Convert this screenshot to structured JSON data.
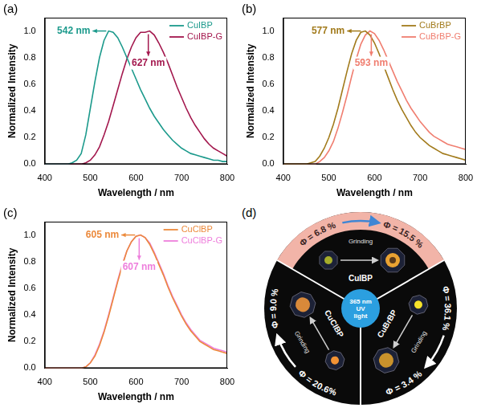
{
  "chart_data": [
    {
      "type": "line",
      "panel": "(a)",
      "x_label": "Wavelength / nm",
      "y_label": "Normalized Intensity",
      "x": [
        400,
        410,
        420,
        430,
        440,
        450,
        460,
        470,
        480,
        490,
        500,
        510,
        520,
        530,
        540,
        550,
        560,
        570,
        580,
        590,
        600,
        610,
        620,
        630,
        640,
        650,
        660,
        670,
        680,
        690,
        700,
        710,
        720,
        730,
        740,
        750,
        760,
        770,
        780,
        790,
        800
      ],
      "series": [
        {
          "name": "CuIBP",
          "color": "#1c9a8c",
          "values": [
            0,
            0,
            0,
            0,
            0,
            0,
            0.01,
            0.03,
            0.08,
            0.22,
            0.42,
            0.62,
            0.8,
            0.93,
            1.0,
            0.99,
            0.95,
            0.88,
            0.8,
            0.72,
            0.64,
            0.56,
            0.49,
            0.42,
            0.36,
            0.31,
            0.26,
            0.22,
            0.18,
            0.15,
            0.12,
            0.1,
            0.08,
            0.07,
            0.06,
            0.05,
            0.04,
            0.03,
            0.03,
            0.02,
            0.02
          ]
        },
        {
          "name": "CuIBP-G",
          "color": "#a3174d",
          "values": [
            0,
            0,
            0,
            0,
            0,
            0,
            0,
            0,
            0,
            0.01,
            0.03,
            0.07,
            0.13,
            0.22,
            0.32,
            0.44,
            0.56,
            0.68,
            0.79,
            0.88,
            0.95,
            0.99,
            0.99,
            1.0,
            0.97,
            0.91,
            0.84,
            0.76,
            0.67,
            0.58,
            0.5,
            0.42,
            0.35,
            0.29,
            0.24,
            0.19,
            0.15,
            0.12,
            0.1,
            0.08,
            0.06
          ]
        }
      ],
      "xlim": [
        400,
        800
      ],
      "xticks": [
        400,
        500,
        600,
        700,
        800
      ],
      "ylim": [
        0,
        1.1
      ],
      "yticks": [
        {
          "value": 0,
          "label": "0.0"
        },
        {
          "value": 0.2,
          "label": "0.2"
        },
        {
          "value": 0.4,
          "label": "0.4"
        },
        {
          "value": 0.6,
          "label": "0.6"
        },
        {
          "value": 0.8,
          "label": "0.8"
        },
        {
          "value": 1.0,
          "label": "1.0"
        }
      ],
      "grid": false,
      "legend": "upper right",
      "annotations": [
        {
          "text": "542 nm",
          "x": 542,
          "y": 1.0,
          "color": "#1c9a8c"
        },
        {
          "text": "627 nm",
          "x": 627,
          "y": 1.0,
          "color": "#a3174d"
        }
      ]
    },
    {
      "type": "line",
      "panel": "(b)",
      "x_label": "Wavelength / nm",
      "y_label": "Normalized Intensity",
      "x": [
        400,
        410,
        420,
        430,
        440,
        450,
        460,
        470,
        480,
        490,
        500,
        510,
        520,
        530,
        540,
        550,
        560,
        570,
        580,
        590,
        600,
        610,
        620,
        630,
        640,
        650,
        660,
        670,
        680,
        690,
        700,
        710,
        720,
        730,
        740,
        750,
        760,
        770,
        780,
        790,
        800
      ],
      "series": [
        {
          "name": "CuBrBP",
          "color": "#a27b1c",
          "values": [
            0,
            0,
            0,
            0,
            0,
            0,
            0.01,
            0.02,
            0.06,
            0.12,
            0.2,
            0.3,
            0.42,
            0.56,
            0.7,
            0.83,
            0.93,
            0.99,
            1.0,
            0.97,
            0.91,
            0.83,
            0.74,
            0.65,
            0.56,
            0.48,
            0.41,
            0.35,
            0.29,
            0.24,
            0.2,
            0.17,
            0.14,
            0.12,
            0.1,
            0.08,
            0.07,
            0.06,
            0.05,
            0.04,
            0.03
          ]
        },
        {
          "name": "CuBrBP-G",
          "color": "#f07e70",
          "values": [
            0,
            0,
            0,
            0,
            0,
            0,
            0,
            0,
            0.02,
            0.05,
            0.1,
            0.17,
            0.27,
            0.39,
            0.52,
            0.66,
            0.79,
            0.9,
            0.97,
            1.0,
            0.98,
            0.93,
            0.86,
            0.78,
            0.7,
            0.62,
            0.55,
            0.48,
            0.42,
            0.37,
            0.32,
            0.28,
            0.24,
            0.21,
            0.19,
            0.17,
            0.15,
            0.14,
            0.13,
            0.12,
            0.11
          ]
        }
      ],
      "xlim": [
        400,
        800
      ],
      "xticks": [
        400,
        500,
        600,
        700,
        800
      ],
      "ylim": [
        0,
        1.1
      ],
      "yticks": [
        {
          "value": 0,
          "label": "0.0"
        },
        {
          "value": 0.2,
          "label": "0.2"
        },
        {
          "value": 0.4,
          "label": "0.4"
        },
        {
          "value": 0.6,
          "label": "0.6"
        },
        {
          "value": 0.8,
          "label": "0.8"
        },
        {
          "value": 1.0,
          "label": "1.0"
        }
      ],
      "grid": false,
      "legend": "upper right",
      "annotations": [
        {
          "text": "577 nm",
          "x": 577,
          "y": 1.0,
          "color": "#a27b1c"
        },
        {
          "text": "593 nm",
          "x": 593,
          "y": 1.0,
          "color": "#f07e70"
        }
      ]
    },
    {
      "type": "line",
      "panel": "(c)",
      "x_label": "Wavelength / nm",
      "y_label": "Normalized Intensity",
      "x": [
        400,
        410,
        420,
        430,
        440,
        450,
        460,
        470,
        480,
        490,
        500,
        510,
        520,
        530,
        540,
        550,
        560,
        570,
        580,
        590,
        600,
        610,
        620,
        630,
        640,
        650,
        660,
        670,
        680,
        690,
        700,
        710,
        720,
        730,
        740,
        750,
        760,
        770,
        780,
        790,
        800
      ],
      "series": [
        {
          "name": "CuClBP",
          "color": "#ec8a3c",
          "values": [
            0,
            0,
            0,
            0,
            0,
            0,
            0,
            0,
            0,
            0.01,
            0.04,
            0.09,
            0.17,
            0.27,
            0.39,
            0.52,
            0.65,
            0.77,
            0.88,
            0.95,
            0.99,
            1.0,
            0.98,
            0.93,
            0.86,
            0.78,
            0.7,
            0.61,
            0.53,
            0.46,
            0.39,
            0.33,
            0.28,
            0.24,
            0.2,
            0.18,
            0.16,
            0.14,
            0.13,
            0.12,
            0.11
          ]
        },
        {
          "name": "CuClBP-G",
          "color": "#ee7fdc",
          "values": [
            0,
            0,
            0,
            0,
            0,
            0,
            0,
            0,
            0,
            0.01,
            0.04,
            0.1,
            0.18,
            0.28,
            0.4,
            0.53,
            0.66,
            0.78,
            0.88,
            0.95,
            0.99,
            1.0,
            0.98,
            0.94,
            0.87,
            0.79,
            0.71,
            0.62,
            0.54,
            0.47,
            0.4,
            0.34,
            0.29,
            0.25,
            0.21,
            0.19,
            0.17,
            0.15,
            0.14,
            0.13,
            0.12
          ]
        }
      ],
      "xlim": [
        400,
        800
      ],
      "xticks": [
        400,
        500,
        600,
        700,
        800
      ],
      "ylim": [
        0,
        1.1
      ],
      "yticks": [
        {
          "value": 0,
          "label": "0.0"
        },
        {
          "value": 0.2,
          "label": "0.2"
        },
        {
          "value": 0.4,
          "label": "0.4"
        },
        {
          "value": 0.6,
          "label": "0.6"
        },
        {
          "value": 0.8,
          "label": "0.8"
        },
        {
          "value": 1.0,
          "label": "1.0"
        }
      ],
      "grid": false,
      "legend": "upper right",
      "annotations": [
        {
          "text": "605 nm",
          "x": 605,
          "y": 1.0,
          "color": "#ec8a3c"
        },
        {
          "text": "607 nm",
          "x": 607,
          "y": 1.0,
          "color": "#ee7fdc"
        }
      ]
    }
  ],
  "diagram": {
    "panel": "(d)",
    "center": "365 nm UV light",
    "sectors": [
      {
        "name": "CuIBP",
        "before": "Φ = 6.8 %",
        "after": "Φ = 15.5 %",
        "action": "Grinding"
      },
      {
        "name": "CuBrBP",
        "before": "Φ = 36.1 %",
        "after": "Φ = 3.4 %",
        "action": "Grinding"
      },
      {
        "name": "CuClBP",
        "before": "Φ = 20.6%",
        "after": "Φ = 9.0 %",
        "action": "Grinding"
      }
    ]
  }
}
